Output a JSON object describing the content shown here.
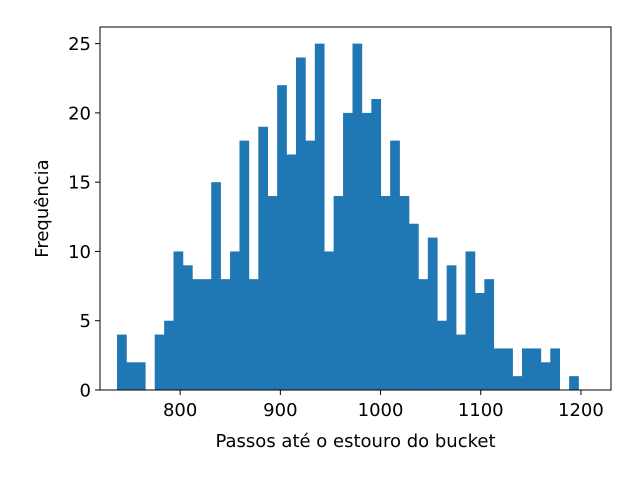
{
  "chart_data": {
    "type": "bar",
    "subtype": "histogram",
    "title": "",
    "xlabel": "Passos até o estouro do bucket",
    "ylabel": "Frequência",
    "bar_color": "#1f77b4",
    "xlim": [
      720,
      1230
    ],
    "ylim": [
      0,
      26.2
    ],
    "x_ticks": [
      800,
      900,
      1000,
      1100,
      1200
    ],
    "y_ticks": [
      0,
      5,
      10,
      15,
      20,
      25
    ],
    "bin_start": 737,
    "bin_width": 9.4,
    "values": [
      4,
      2,
      2,
      0,
      4,
      5,
      10,
      9,
      8,
      8,
      15,
      8,
      10,
      18,
      8,
      19,
      14,
      22,
      17,
      24,
      18,
      25,
      10,
      14,
      20,
      25,
      20,
      21,
      14,
      18,
      14,
      12,
      8,
      11,
      5,
      9,
      4,
      10,
      7,
      8,
      3,
      3,
      1,
      3,
      3,
      2,
      3,
      0,
      1
    ],
    "grid": false,
    "legend": "none"
  }
}
